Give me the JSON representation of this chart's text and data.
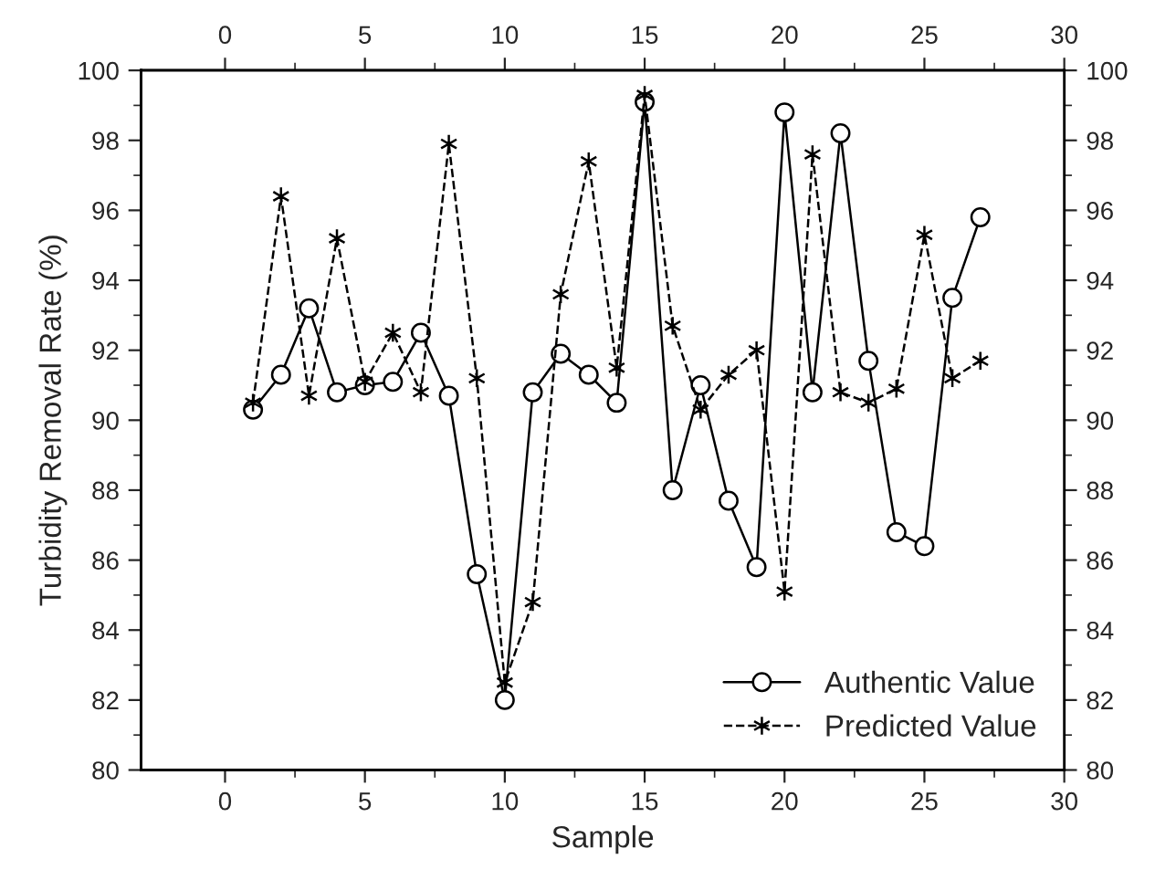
{
  "chart_data": {
    "type": "line",
    "xlabel": "Sample",
    "ylabel": "Turbidity Removal Rate (%)",
    "x": [
      1,
      2,
      3,
      4,
      5,
      6,
      7,
      8,
      9,
      10,
      11,
      12,
      13,
      14,
      15,
      16,
      17,
      18,
      19,
      20,
      21,
      22,
      23,
      24,
      25,
      26,
      27
    ],
    "series": [
      {
        "name": "Authentic Value",
        "color": "#000000",
        "marker": "circle",
        "line_style": "solid",
        "values": [
          90.3,
          91.3,
          93.2,
          90.8,
          91.0,
          91.1,
          92.5,
          90.7,
          85.6,
          82.0,
          90.8,
          91.9,
          91.3,
          90.5,
          99.1,
          88.0,
          91.0,
          87.7,
          85.8,
          98.8,
          90.8,
          98.2,
          91.7,
          86.8,
          86.4,
          93.5,
          95.8
        ]
      },
      {
        "name": "Predicted Value",
        "color": "#000000",
        "marker": "cross",
        "line_style": "dashed",
        "values": [
          90.5,
          96.4,
          90.7,
          95.2,
          91.1,
          92.5,
          90.8,
          97.9,
          91.2,
          82.5,
          84.8,
          93.6,
          97.4,
          91.5,
          99.3,
          92.7,
          90.3,
          91.3,
          92.0,
          85.1,
          97.6,
          90.8,
          90.5,
          90.9,
          95.3,
          91.2,
          91.7
        ]
      }
    ],
    "xlim": [
      -3,
      30
    ],
    "xticks": [
      0,
      5,
      10,
      15,
      20,
      25,
      30
    ],
    "x2lim": [
      -3,
      30
    ],
    "x2ticks": [
      0,
      5,
      10,
      15,
      20,
      25,
      30
    ],
    "ylim": [
      80,
      100
    ],
    "yticks": [
      80,
      82,
      84,
      86,
      88,
      90,
      92,
      94,
      96,
      98,
      100
    ],
    "y2lim": [
      80,
      100
    ],
    "y2ticks": [
      80,
      82,
      84,
      86,
      88,
      90,
      92,
      94,
      96,
      98,
      100
    ],
    "grid": false,
    "legend": "bottom right"
  }
}
